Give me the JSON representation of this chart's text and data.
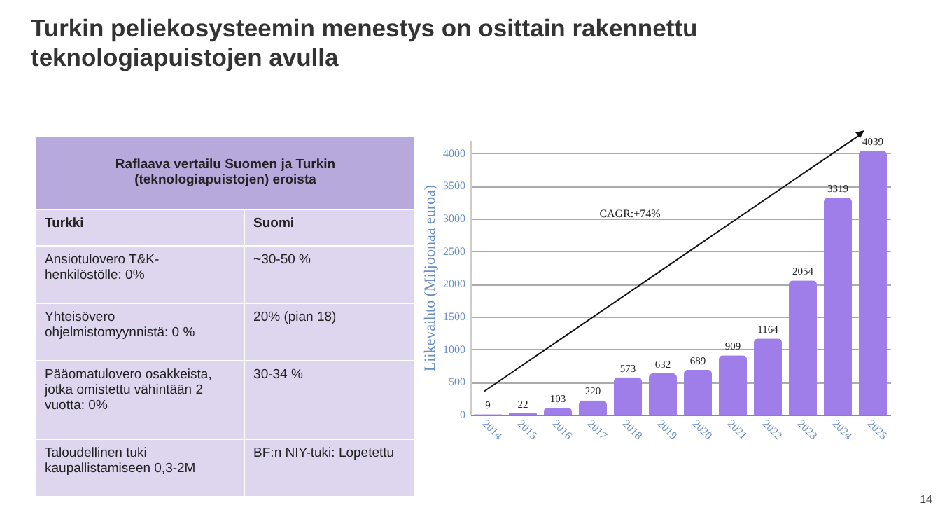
{
  "chart_data": [
    {
      "type": "other",
      "title": "Raflaava vertailu Suomen ja Turkin (teknologiapuistojen)  eroista",
      "annotations": [
        "Turkki",
        "Suomi",
        "Ansiotulovero T&K-henkilöstölle:  0%",
        "~30-50 %",
        "Yhteisövero ohjelmistomyynnistä: 0 %",
        "20% (pian 18)",
        "Pääomatulovero osakkeista, jotka omistettu vähintään 2 vuotta: 0%",
        "30-34 %",
        "Taloudellinen tuki kaupallistamiseen 0,3-2M",
        "BF:n NIY-tuki: Lopetettu"
      ]
    },
    {
      "type": "bar",
      "title": "Turkin peliekosysteemin menestys on osittain rakennettu teknologiapuistojen avulla",
      "ylabel": "Liikevaihto (Miljoonaa euroa)",
      "categories": [
        "2014",
        "2015",
        "2016",
        "2017",
        "2018",
        "2019",
        "2020",
        "2021",
        "2022",
        "2023",
        "2024",
        "2025"
      ],
      "values": [
        9,
        22,
        103,
        220,
        573,
        632,
        689,
        909,
        1164,
        2054,
        3319,
        4039
      ],
      "color": "#a07ee9",
      "ylim": [
        0,
        4200
      ],
      "yticks": [
        0,
        500,
        1000,
        1500,
        2000,
        2500,
        3000,
        3500,
        4000
      ],
      "grid": "y",
      "data_labels": true,
      "annotations": [
        "CAGR:+74%",
        "14"
      ]
    }
  ]
}
